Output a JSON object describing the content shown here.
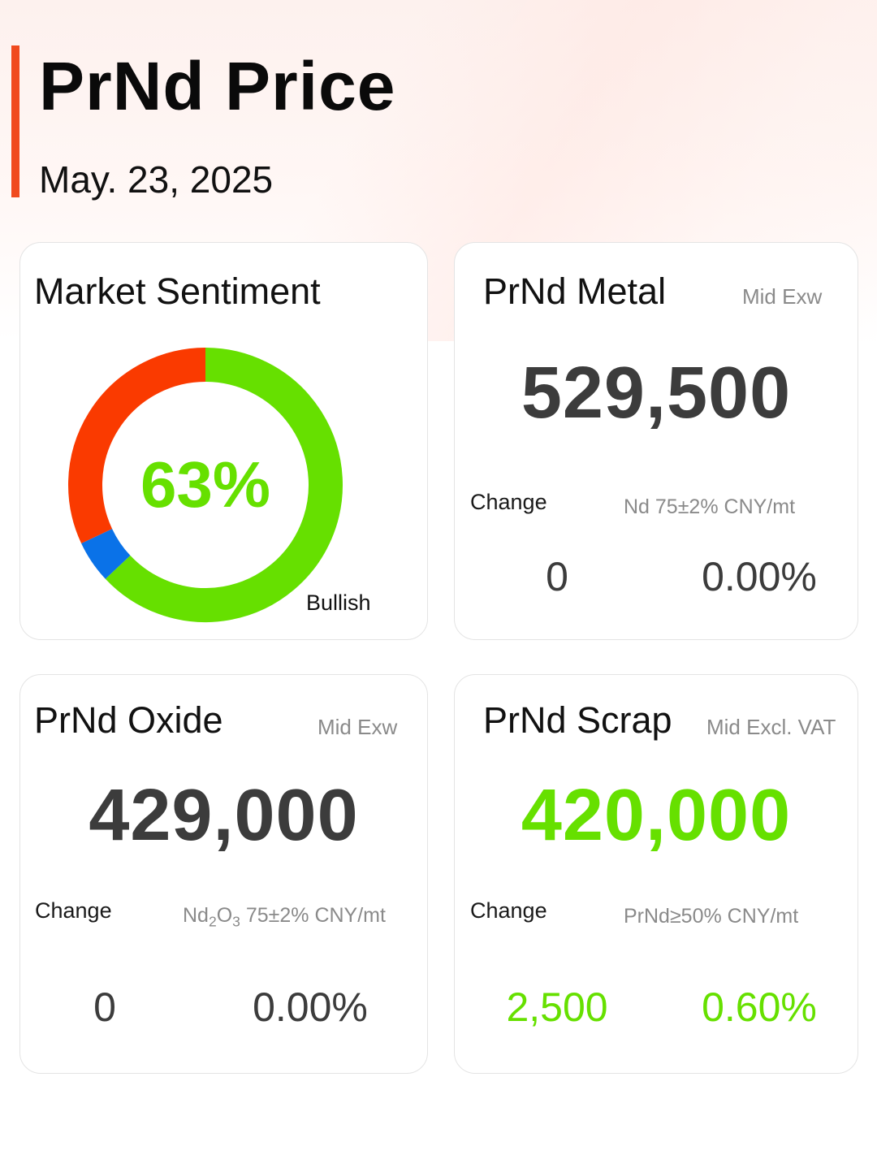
{
  "header": {
    "title": "PrNd Price",
    "date": "May. 23, 2025"
  },
  "sentiment": {
    "title": "Market Sentiment",
    "percent_label": "63%",
    "label": "Bullish",
    "segments": [
      {
        "name": "bullish",
        "value": 63,
        "color": "#66e000"
      },
      {
        "name": "neutral",
        "value": 5,
        "color": "#0a72e8"
      },
      {
        "name": "bearish",
        "value": 32,
        "color": "#fa3a00"
      }
    ]
  },
  "metal": {
    "title": "PrNd Metal",
    "sub": "Mid  Exw",
    "price": "529,500",
    "change_label": "Change",
    "spec": "Nd 75±2% CNY/mt",
    "change_abs": "0",
    "change_pct": "0.00%"
  },
  "oxide": {
    "title": "PrNd Oxide",
    "sub": "Mid  Exw",
    "price": "429,000",
    "change_label": "Change",
    "spec_prefix": "Nd",
    "spec_sub1": "2",
    "spec_mid": "O",
    "spec_sub2": "3",
    "spec_suffix": " 75±2% CNY/mt",
    "change_abs": "0",
    "change_pct": "0.00%"
  },
  "scrap": {
    "title": "PrNd Scrap",
    "sub": "Mid  Excl. VAT",
    "price": "420,000",
    "change_label": "Change",
    "spec": "PrNd≥50% CNY/mt",
    "change_abs": "2,500",
    "change_pct": "0.60%"
  },
  "colors": {
    "accent": "#f04a1e",
    "up": "#66e000",
    "neutral_text": "#3c3c3c"
  }
}
